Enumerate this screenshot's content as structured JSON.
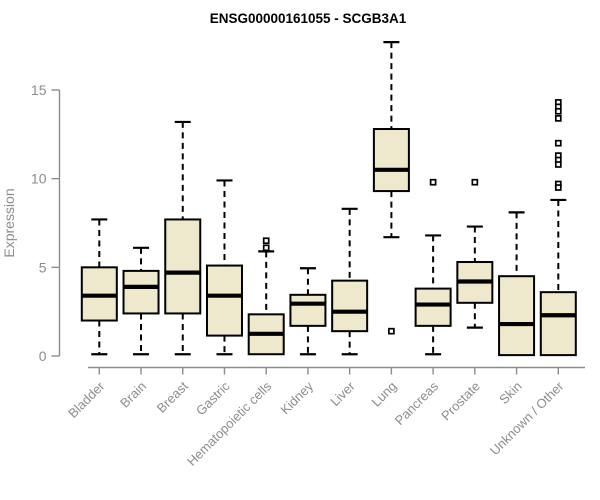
{
  "chart_data": {
    "type": "boxplot",
    "title": "ENSG00000161055 - SCGB3A1",
    "ylabel": "Expression",
    "xlabel": "",
    "y_ticks": [
      0,
      5,
      10,
      15
    ],
    "ylim": [
      0,
      17.8
    ],
    "grid": false,
    "legend": "none",
    "categories": [
      "Bladder",
      "Brain",
      "Breast",
      "Gastric",
      "Hematopoietic cells",
      "Kidney",
      "Liver",
      "Lung",
      "Pancreas",
      "Prostate",
      "Skin",
      "Unknown / Other"
    ],
    "series": [
      {
        "name": "Bladder",
        "low": 0.1,
        "q1": 2.0,
        "median": 3.4,
        "q3": 5.0,
        "high": 7.7,
        "outliers": []
      },
      {
        "name": "Brain",
        "low": 0.1,
        "q1": 2.4,
        "median": 3.9,
        "q3": 4.8,
        "high": 6.1,
        "outliers": []
      },
      {
        "name": "Breast",
        "low": 0.1,
        "q1": 2.4,
        "median": 4.7,
        "q3": 7.7,
        "high": 13.2,
        "outliers": []
      },
      {
        "name": "Gastric",
        "low": 0.1,
        "q1": 1.15,
        "median": 3.4,
        "q3": 5.1,
        "high": 9.9,
        "outliers": []
      },
      {
        "name": "Hematopoietic cells",
        "low": 0.1,
        "q1": 0.1,
        "median": 1.25,
        "q3": 2.35,
        "high": 5.9,
        "outliers": [
          6.5,
          6.1
        ]
      },
      {
        "name": "Kidney",
        "low": 0.1,
        "q1": 1.7,
        "median": 2.95,
        "q3": 3.45,
        "high": 4.95,
        "outliers": []
      },
      {
        "name": "Liver",
        "low": 0.1,
        "q1": 1.4,
        "median": 2.5,
        "q3": 4.25,
        "high": 8.3,
        "outliers": []
      },
      {
        "name": "Lung",
        "low": 6.7,
        "q1": 9.3,
        "median": 10.5,
        "q3": 12.8,
        "high": 17.7,
        "outliers": [
          1.4
        ]
      },
      {
        "name": "Pancreas",
        "low": 0.1,
        "q1": 1.7,
        "median": 2.9,
        "q3": 3.8,
        "high": 6.8,
        "outliers": [
          9.8
        ]
      },
      {
        "name": "Prostate",
        "low": 1.6,
        "q1": 3.0,
        "median": 4.2,
        "q3": 5.3,
        "high": 7.3,
        "outliers": [
          9.8
        ]
      },
      {
        "name": "Skin",
        "low": 0.05,
        "q1": 0.05,
        "median": 1.8,
        "q3": 4.5,
        "high": 8.1,
        "outliers": []
      },
      {
        "name": "Unknown / Other",
        "low": 0.05,
        "q1": 0.05,
        "median": 2.3,
        "q3": 3.6,
        "high": 8.8,
        "outliers": [
          14.3,
          14.05,
          13.8,
          13.4,
          12.0,
          11.3,
          11.05,
          10.8,
          9.7,
          9.5
        ]
      }
    ],
    "colors": {
      "box_fill": "#EEE8CD",
      "box_stroke": "#000000",
      "median": "#000000",
      "whisker": "#000000",
      "axis": "#8c8c8c",
      "tick_label": "#8c8c8c",
      "title": "#000000",
      "background": "#ffffff"
    }
  }
}
